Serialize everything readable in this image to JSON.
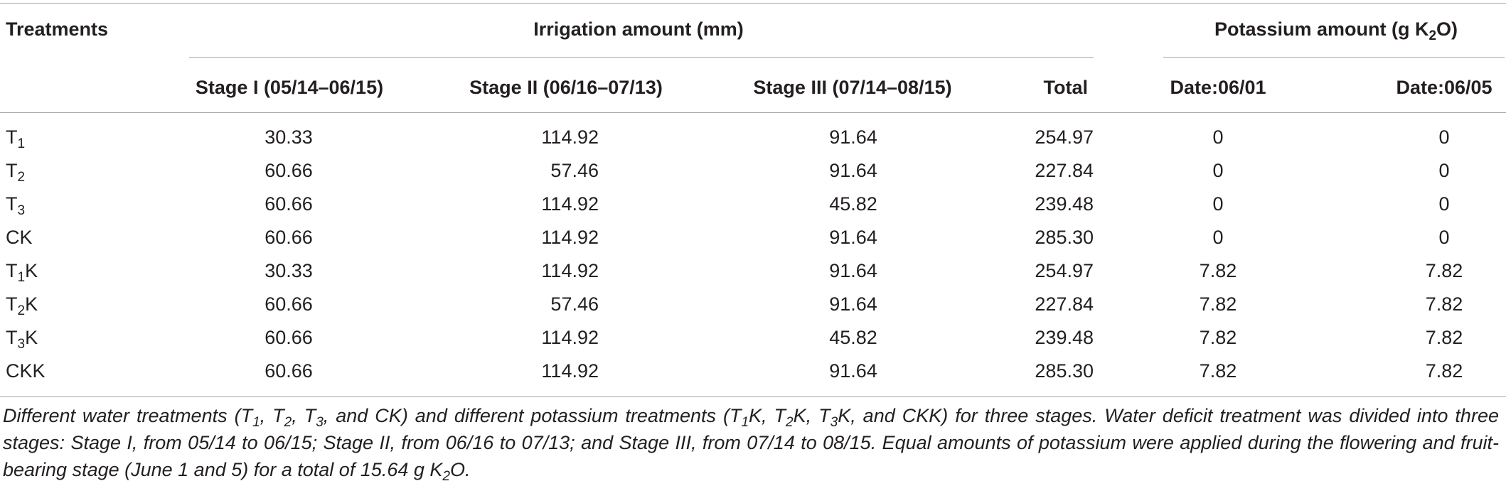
{
  "table": {
    "header": {
      "treatments": "Treatments",
      "irrigation_group": "Irrigation amount (mm)",
      "potassium_group_pre": "Potassium amount (g K",
      "potassium_group_sub": "2",
      "potassium_group_post": "O)",
      "columns": [
        "Stage I (05/14–06/15)",
        "Stage II (06/16–07/13)",
        "Stage III (07/14–08/15)",
        "Total",
        "Date:06/01",
        "Date:06/05"
      ]
    },
    "rows": [
      {
        "base": "T",
        "sub": "1",
        "suffix": "",
        "values": [
          "30.33",
          "114.92",
          "91.64",
          "254.97",
          "0",
          "0"
        ]
      },
      {
        "base": "T",
        "sub": "2",
        "suffix": "",
        "values": [
          "60.66",
          "57.46",
          "91.64",
          "227.84",
          "0",
          "0"
        ]
      },
      {
        "base": "T",
        "sub": "3",
        "suffix": "",
        "values": [
          "60.66",
          "114.92",
          "45.82",
          "239.48",
          "0",
          "0"
        ]
      },
      {
        "base": "CK",
        "sub": "",
        "suffix": "",
        "values": [
          "60.66",
          "114.92",
          "91.64",
          "285.30",
          "0",
          "0"
        ]
      },
      {
        "base": "T",
        "sub": "1",
        "suffix": "K",
        "values": [
          "30.33",
          "114.92",
          "91.64",
          "254.97",
          "7.82",
          "7.82"
        ]
      },
      {
        "base": "T",
        "sub": "2",
        "suffix": "K",
        "values": [
          "60.66",
          "57.46",
          "91.64",
          "227.84",
          "7.82",
          "7.82"
        ]
      },
      {
        "base": "T",
        "sub": "3",
        "suffix": "K",
        "values": [
          "60.66",
          "114.92",
          "45.82",
          "239.48",
          "7.82",
          "7.82"
        ]
      },
      {
        "base": "CKK",
        "sub": "",
        "suffix": "",
        "values": [
          "60.66",
          "114.92",
          "91.64",
          "285.30",
          "7.82",
          "7.82"
        ]
      }
    ]
  },
  "footnote": {
    "p1": "Different water treatments (T",
    "s1": "1",
    "p2": ", T",
    "s2": "2",
    "p3": ", T",
    "s3": "3",
    "p4": ", and CK) and different potassium treatments (T",
    "s4": "1",
    "p5": "K, T",
    "s5": "2",
    "p6": "K, T",
    "s6": "3",
    "p7": "K, and CKK) for three stages. Water deficit treatment was divided into three stages: Stage I, from 05/14 to 06/15; Stage II, from 06/16 to 07/13; and Stage III, from 07/14 to 08/15. Equal amounts of potassium were applied during the flowering and fruit-bearing stage (June 1 and 5) for a total of 15.64 g K",
    "s7": "2",
    "p8": "O."
  }
}
